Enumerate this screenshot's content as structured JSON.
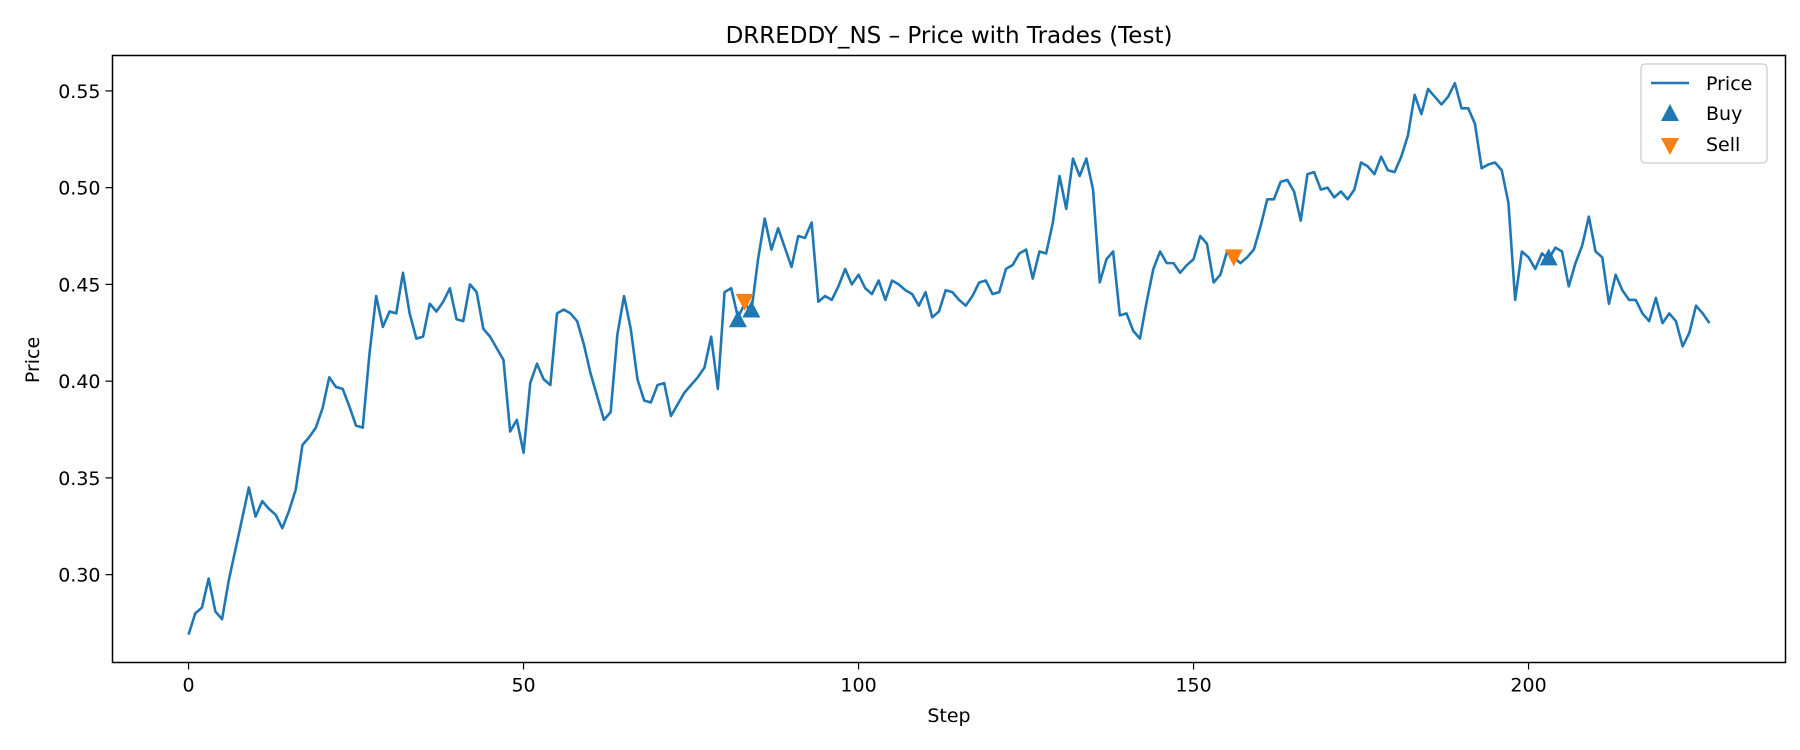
{
  "chart_data": {
    "type": "line",
    "title": "DRREDDY_NS – Price with Trades (Test)",
    "xlabel": "Step",
    "ylabel": "Price",
    "xlim": [
      -11.35,
      238.35
    ],
    "ylim": [
      0.2546,
      0.5683
    ],
    "xticks": [
      0,
      50,
      100,
      150,
      200
    ],
    "yticks": [
      0.3,
      0.35,
      0.4,
      0.45,
      0.5,
      0.55
    ],
    "grid": false,
    "legend_position": "top-right",
    "colors": {
      "price": "#1f77b4",
      "buy": "#1f77b4",
      "sell": "#ff7f0e"
    },
    "series": [
      {
        "name": "Price",
        "x_start": 0,
        "x_step": 1,
        "values": [
          0.269,
          0.28,
          0.283,
          0.298,
          0.281,
          0.277,
          0.297,
          0.313,
          0.329,
          0.345,
          0.33,
          0.338,
          0.334,
          0.331,
          0.324,
          0.333,
          0.344,
          0.367,
          0.371,
          0.376,
          0.386,
          0.402,
          0.397,
          0.396,
          0.387,
          0.377,
          0.376,
          0.414,
          0.444,
          0.428,
          0.436,
          0.435,
          0.456,
          0.435,
          0.422,
          0.423,
          0.44,
          0.436,
          0.441,
          0.448,
          0.432,
          0.431,
          0.45,
          0.446,
          0.427,
          0.423,
          0.417,
          0.411,
          0.374,
          0.38,
          0.363,
          0.399,
          0.409,
          0.401,
          0.398,
          0.435,
          0.437,
          0.435,
          0.431,
          0.419,
          0.404,
          0.392,
          0.38,
          0.384,
          0.424,
          0.444,
          0.427,
          0.401,
          0.39,
          0.389,
          0.398,
          0.399,
          0.382,
          0.388,
          0.394,
          0.398,
          0.402,
          0.407,
          0.423,
          0.396,
          0.446,
          0.448,
          0.433,
          0.44,
          0.436,
          0.463,
          0.484,
          0.468,
          0.479,
          0.469,
          0.459,
          0.475,
          0.474,
          0.482,
          0.441,
          0.444,
          0.442,
          0.449,
          0.458,
          0.45,
          0.455,
          0.448,
          0.445,
          0.452,
          0.442,
          0.452,
          0.45,
          0.447,
          0.445,
          0.439,
          0.446,
          0.433,
          0.436,
          0.447,
          0.446,
          0.442,
          0.439,
          0.444,
          0.451,
          0.452,
          0.445,
          0.446,
          0.458,
          0.46,
          0.466,
          0.468,
          0.453,
          0.467,
          0.466,
          0.482,
          0.506,
          0.489,
          0.515,
          0.506,
          0.515,
          0.499,
          0.451,
          0.463,
          0.467,
          0.434,
          0.435,
          0.426,
          0.422,
          0.441,
          0.458,
          0.467,
          0.461,
          0.461,
          0.456,
          0.46,
          0.463,
          0.475,
          0.471,
          0.451,
          0.455,
          0.467,
          0.464,
          0.461,
          0.464,
          0.468,
          0.48,
          0.494,
          0.494,
          0.503,
          0.504,
          0.498,
          0.483,
          0.507,
          0.508,
          0.499,
          0.5,
          0.495,
          0.498,
          0.494,
          0.499,
          0.513,
          0.511,
          0.507,
          0.516,
          0.509,
          0.508,
          0.516,
          0.527,
          0.548,
          0.538,
          0.551,
          0.547,
          0.543,
          0.547,
          0.554,
          0.541,
          0.541,
          0.533,
          0.51,
          0.512,
          0.513,
          0.509,
          0.492,
          0.442,
          0.467,
          0.464,
          0.458,
          0.466,
          0.463,
          0.469,
          0.467,
          0.449,
          0.461,
          0.47,
          0.485,
          0.467,
          0.464,
          0.44,
          0.455,
          0.447,
          0.442,
          0.442,
          0.435,
          0.431,
          0.443,
          0.43,
          0.435,
          0.431,
          0.418,
          0.425,
          0.439,
          0.435,
          0.43
        ]
      }
    ],
    "trades": {
      "buy": {
        "name": "Buy",
        "x": [
          82,
          84,
          203
        ],
        "y": [
          0.432,
          0.437,
          0.464
        ]
      },
      "sell": {
        "name": "Sell",
        "x": [
          83,
          156
        ],
        "y": [
          0.441,
          0.464
        ]
      }
    }
  }
}
